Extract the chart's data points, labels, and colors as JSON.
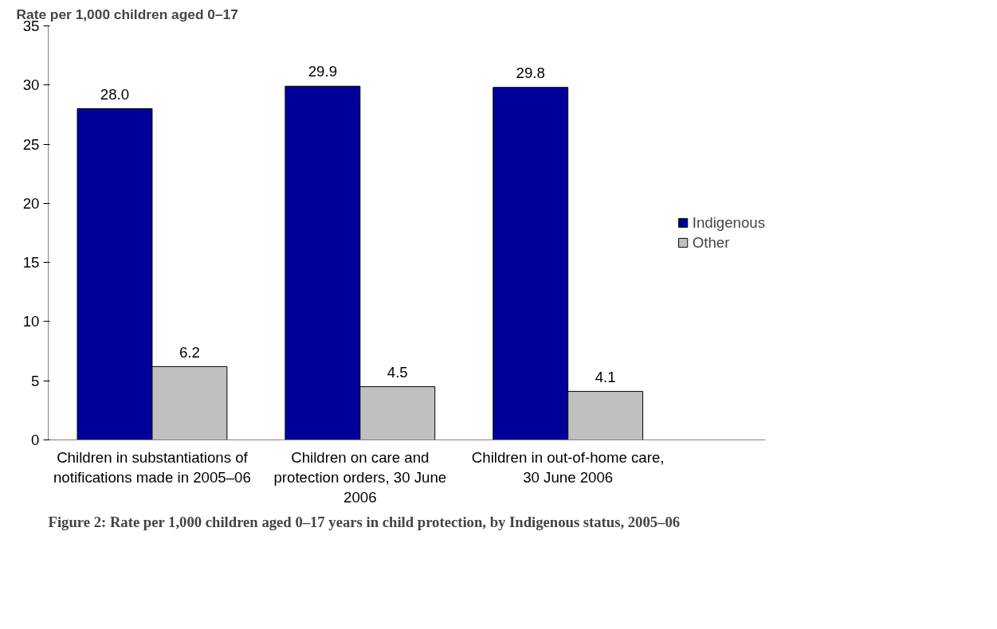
{
  "chart_data": {
    "type": "bar",
    "ylabel": "Rate per 1,000 children aged 0–17",
    "categories": [
      "Children in substantiations of notifications made in 2005–06",
      "Children on care and protection orders, 30 June 2006",
      "Children in out-of-home care, 30 June 2006"
    ],
    "series": [
      {
        "name": "Indigenous",
        "color": "#000099",
        "values": [
          28.0,
          29.9,
          29.8
        ],
        "value_labels": [
          "28.0",
          "29.9",
          "29.8"
        ]
      },
      {
        "name": "Other",
        "color": "#c0c0c0",
        "values": [
          6.2,
          4.5,
          4.1
        ],
        "value_labels": [
          "6.2",
          "4.5",
          "4.1"
        ]
      }
    ],
    "ylim": [
      0,
      35
    ],
    "yticks": [
      0,
      5,
      10,
      15,
      20,
      25,
      30,
      35
    ],
    "grid": false,
    "legend": "right",
    "annotations": [
      "Figure 2: Rate per 1,000 children aged 0–17 years in child protection, by Indigenous status, 2005–06"
    ]
  }
}
